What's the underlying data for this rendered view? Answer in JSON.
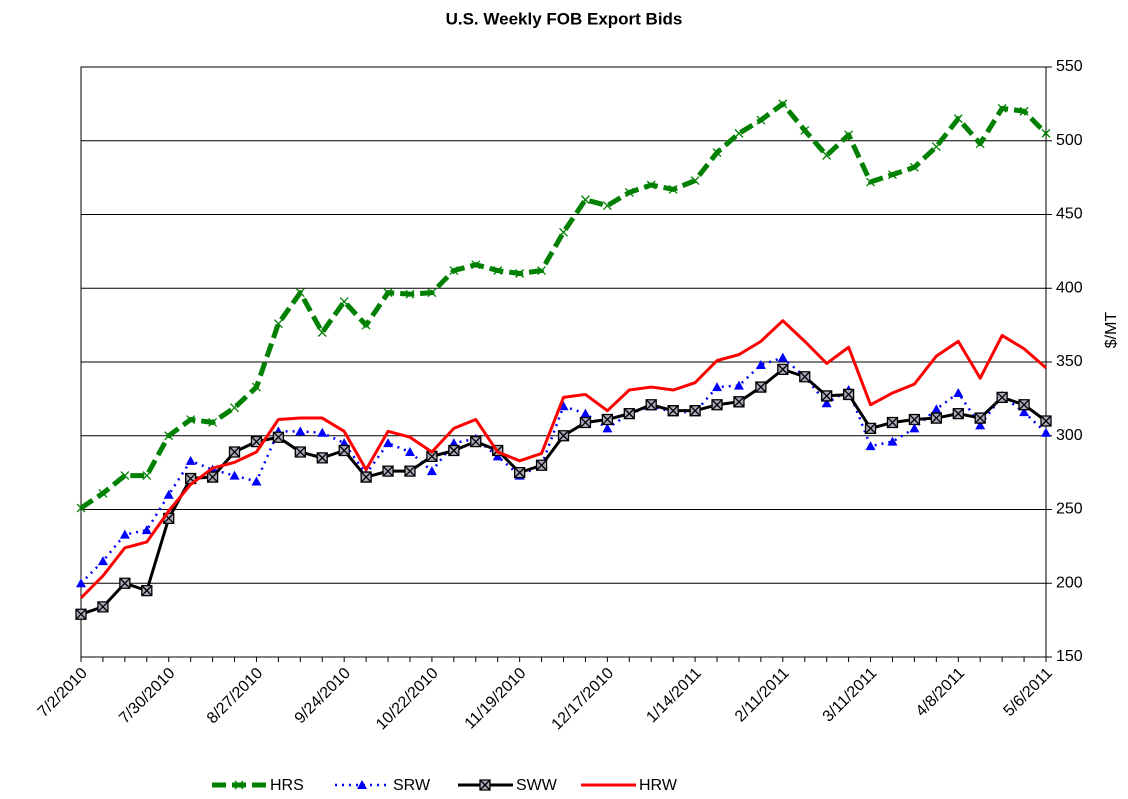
{
  "chart_data": {
    "type": "line",
    "title": "U.S.  Weekly FOB Export Bids",
    "y_label": "$/MT",
    "categories": [
      "7/2/2010",
      null,
      null,
      null,
      "7/30/2010",
      null,
      null,
      null,
      "8/27/2010",
      null,
      null,
      null,
      "9/24/2010",
      null,
      null,
      null,
      "10/22/2010",
      null,
      null,
      null,
      "11/19/2010",
      null,
      null,
      null,
      "12/17/2010",
      null,
      null,
      null,
      "1/14/2011",
      null,
      null,
      null,
      "2/11/2011",
      null,
      null,
      null,
      "3/11/2011",
      null,
      null,
      null,
      "4/8/2011",
      null,
      null,
      null,
      "5/6/2011"
    ],
    "ylim": [
      150,
      550
    ],
    "yticks": [
      150,
      200,
      250,
      300,
      350,
      400,
      450,
      500,
      550
    ],
    "grid": true,
    "legend": "bottom",
    "series": [
      {
        "name": "HRS",
        "color": "#008000",
        "marker": "x",
        "dash": "dashed",
        "values": [
          251,
          261,
          273,
          273,
          300,
          311,
          309,
          319,
          333,
          376,
          397,
          370,
          391,
          375,
          397,
          396,
          397,
          412,
          416,
          412,
          410,
          412,
          438,
          460,
          456,
          465,
          470,
          467,
          473,
          492,
          505,
          514,
          525,
          507,
          490,
          504,
          472,
          477,
          482,
          496,
          515,
          498,
          522,
          520,
          505
        ]
      },
      {
        "name": "SRW",
        "color": "#0000ff",
        "marker": "triangle",
        "dash": "dotted",
        "values": [
          200,
          215,
          233,
          236,
          260,
          283,
          277,
          273,
          269,
          303,
          303,
          302,
          295,
          274,
          295,
          289,
          276,
          295,
          298,
          286,
          273,
          280,
          320,
          315,
          305,
          315,
          320,
          316,
          316,
          333,
          334,
          348,
          353,
          340,
          322,
          331,
          293,
          296,
          305,
          318,
          329,
          307,
          327,
          316,
          302
        ]
      },
      {
        "name": "SWW",
        "color": "#000000",
        "marker": "boxx",
        "dash": "solid",
        "values": [
          179,
          184,
          200,
          195,
          244,
          271,
          272,
          289,
          296,
          299,
          289,
          285,
          290,
          272,
          276,
          276,
          286,
          290,
          296,
          290,
          275,
          280,
          300,
          309,
          311,
          315,
          321,
          317,
          317,
          321,
          323,
          333,
          345,
          340,
          327,
          328,
          305,
          309,
          311,
          312,
          315,
          312,
          326,
          321,
          310
        ]
      },
      {
        "name": "HRW",
        "color": "#ff0000",
        "marker": "none",
        "dash": "solid",
        "values": [
          190,
          205,
          224,
          228,
          249,
          267,
          278,
          282,
          289,
          311,
          312,
          312,
          303,
          277,
          303,
          299,
          289,
          305,
          311,
          289,
          283,
          288,
          326,
          328,
          317,
          331,
          333,
          331,
          336,
          351,
          355,
          364,
          378,
          364,
          349,
          360,
          321,
          329,
          335,
          354,
          364,
          339,
          368,
          359,
          346
        ]
      }
    ]
  }
}
